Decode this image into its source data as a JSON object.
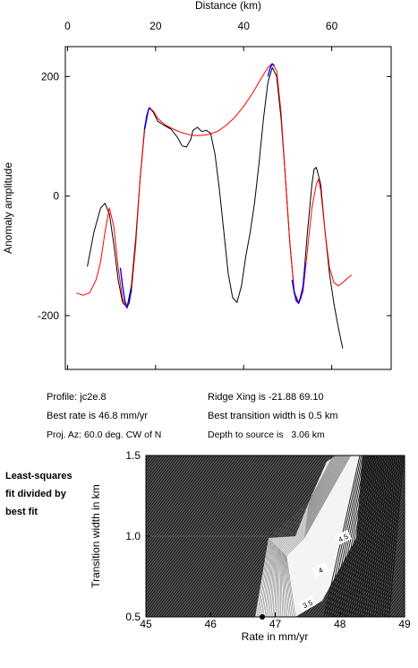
{
  "chart_data": [
    {
      "type": "line",
      "xlabel": "Distance (km)",
      "ylabel": "Anomaly amplitude",
      "xlim": [
        -0.5,
        73.5
      ],
      "ylim": [
        -290,
        250
      ],
      "xticks": [
        0,
        20,
        40,
        60
      ],
      "yticks": [
        -200,
        0,
        200
      ],
      "x_axis_position": "top",
      "grid": false,
      "series": [
        {
          "color": "#000000",
          "points": [
            [
              4.5,
              -118
            ],
            [
              6,
              -60
            ],
            [
              7.5,
              -20
            ],
            [
              8.5,
              -12
            ],
            [
              9.5,
              -30
            ],
            [
              10.5,
              -80
            ],
            [
              11.5,
              -140
            ],
            [
              12.5,
              -178
            ],
            [
              13.5,
              -186
            ],
            [
              14.5,
              -150
            ],
            [
              15.5,
              -70
            ],
            [
              16.5,
              30
            ],
            [
              17.5,
              110
            ],
            [
              18.5,
              148
            ],
            [
              19.5,
              140
            ],
            [
              20.5,
              125
            ],
            [
              22,
              118
            ],
            [
              23.5,
              112
            ],
            [
              25,
              98
            ],
            [
              26,
              84
            ],
            [
              27,
              82
            ],
            [
              28,
              95
            ],
            [
              28.5,
              110
            ],
            [
              29.5,
              115
            ],
            [
              30.5,
              108
            ],
            [
              31.5,
              110
            ],
            [
              32.5,
              105
            ],
            [
              33.5,
              70
            ],
            [
              34.5,
              10
            ],
            [
              35.5,
              -60
            ],
            [
              36.5,
              -130
            ],
            [
              37.5,
              -170
            ],
            [
              38.5,
              -178
            ],
            [
              39.5,
              -150
            ],
            [
              40.5,
              -100
            ],
            [
              41.5,
              -60
            ],
            [
              42.5,
              -10
            ],
            [
              43.5,
              55
            ],
            [
              44.5,
              130
            ],
            [
              45.5,
              190
            ],
            [
              46.5,
              215
            ],
            [
              47.5,
              200
            ],
            [
              48.5,
              130
            ],
            [
              49.5,
              30
            ],
            [
              50.5,
              -80
            ],
            [
              51.5,
              -160
            ],
            [
              52.5,
              -180
            ],
            [
              53.5,
              -150
            ],
            [
              54.5,
              -60
            ],
            [
              55.5,
              20
            ],
            [
              56,
              45
            ],
            [
              56.5,
              48
            ],
            [
              57.5,
              20
            ],
            [
              58.5,
              -60
            ],
            [
              59.5,
              -130
            ],
            [
              60.5,
              -180
            ],
            [
              61.5,
              -220
            ],
            [
              62.5,
              -255
            ]
          ]
        },
        {
          "color": "#ff0000",
          "points": [
            [
              2,
              -162
            ],
            [
              3.5,
              -166
            ],
            [
              5,
              -162
            ],
            [
              6.5,
              -140
            ],
            [
              7.5,
              -110
            ],
            [
              8.5,
              -60
            ],
            [
              9.5,
              -20
            ],
            [
              10.5,
              -50
            ],
            [
              11.5,
              -120
            ],
            [
              12.5,
              -172
            ],
            [
              13.5,
              -188
            ],
            [
              14.5,
              -160
            ],
            [
              15.5,
              -80
            ],
            [
              16.5,
              30
            ],
            [
              17.5,
              115
            ],
            [
              18.5,
              148
            ],
            [
              19.5,
              142
            ],
            [
              20.5,
              130
            ],
            [
              22,
              120
            ],
            [
              24,
              112
            ],
            [
              26,
              106
            ],
            [
              28,
              102
            ],
            [
              30,
              101
            ],
            [
              32,
              103
            ],
            [
              34,
              108
            ],
            [
              36,
              118
            ],
            [
              38,
              132
            ],
            [
              40,
              150
            ],
            [
              42,
              172
            ],
            [
              44,
              197
            ],
            [
              45.5,
              215
            ],
            [
              46.5,
              222
            ],
            [
              47.5,
              210
            ],
            [
              48.5,
              140
            ],
            [
              49.5,
              30
            ],
            [
              50.5,
              -80
            ],
            [
              51.5,
              -160
            ],
            [
              52.5,
              -178
            ],
            [
              53.5,
              -160
            ],
            [
              54.5,
              -90
            ],
            [
              55.5,
              -20
            ],
            [
              56.5,
              20
            ],
            [
              57,
              28
            ],
            [
              57.5,
              10
            ],
            [
              58.5,
              -60
            ],
            [
              59.5,
              -120
            ],
            [
              60.5,
              -145
            ],
            [
              61.5,
              -150
            ],
            [
              62.5,
              -145
            ],
            [
              63.5,
              -138
            ],
            [
              64.5,
              -132
            ]
          ]
        },
        {
          "color": "#0000ff",
          "points": [
            [
              12,
              -120
            ],
            [
              12.5,
              -150
            ],
            [
              13,
              -175
            ],
            [
              13.5,
              -186
            ],
            [
              14,
              -178
            ],
            [
              14.5,
              -155
            ]
          ]
        },
        {
          "color": "#0000ff",
          "points": [
            [
              17.5,
              112
            ],
            [
              18,
              135
            ],
            [
              18.5,
              147
            ],
            [
              19,
              146
            ]
          ]
        },
        {
          "color": "#0000ff",
          "points": [
            [
              45.5,
              200
            ],
            [
              46,
              214
            ],
            [
              46.5,
              221
            ],
            [
              47,
              218
            ]
          ]
        },
        {
          "color": "#0000ff",
          "points": [
            [
              51,
              -140
            ],
            [
              51.5,
              -162
            ],
            [
              52,
              -176
            ],
            [
              52.5,
              -179
            ],
            [
              53,
              -170
            ],
            [
              53.5,
              -150
            ],
            [
              54,
              -112
            ]
          ]
        }
      ]
    },
    {
      "type": "heatmap",
      "subtype": "contour",
      "xlabel": "Rate in mm/yr",
      "ylabel": "Transition width in km",
      "xlim": [
        45,
        49
      ],
      "ylim": [
        0.5,
        1.5
      ],
      "xticks": [
        45,
        46,
        47,
        48,
        49
      ],
      "yticks": [
        0.5,
        1.0,
        1.5
      ],
      "best_fit_marker": {
        "x": 46.8,
        "y": 0.5
      },
      "contour_labels": [
        {
          "text": "4.5",
          "x": 48.05,
          "y": 0.99
        },
        {
          "text": "4",
          "x": 47.7,
          "y": 0.79
        },
        {
          "text": "3.5",
          "x": 47.5,
          "y": 0.58
        }
      ],
      "side_note": "Least-squares fit divided by best fit"
    }
  ],
  "info": {
    "profile": "Profile: jc2e.8",
    "best_rate": "Best rate is 46.8 mm/yr",
    "proj_az": "Proj. Az: 60.0 deg. CW of N",
    "ridge_xing": "Ridge Xing is -21.88 69.10",
    "transition": "Best transition width is 0.5 km",
    "depth": "Depth to source is   3.06 km"
  },
  "side_note_lines": [
    "Least-squares",
    "fit divided by",
    "best fit"
  ]
}
